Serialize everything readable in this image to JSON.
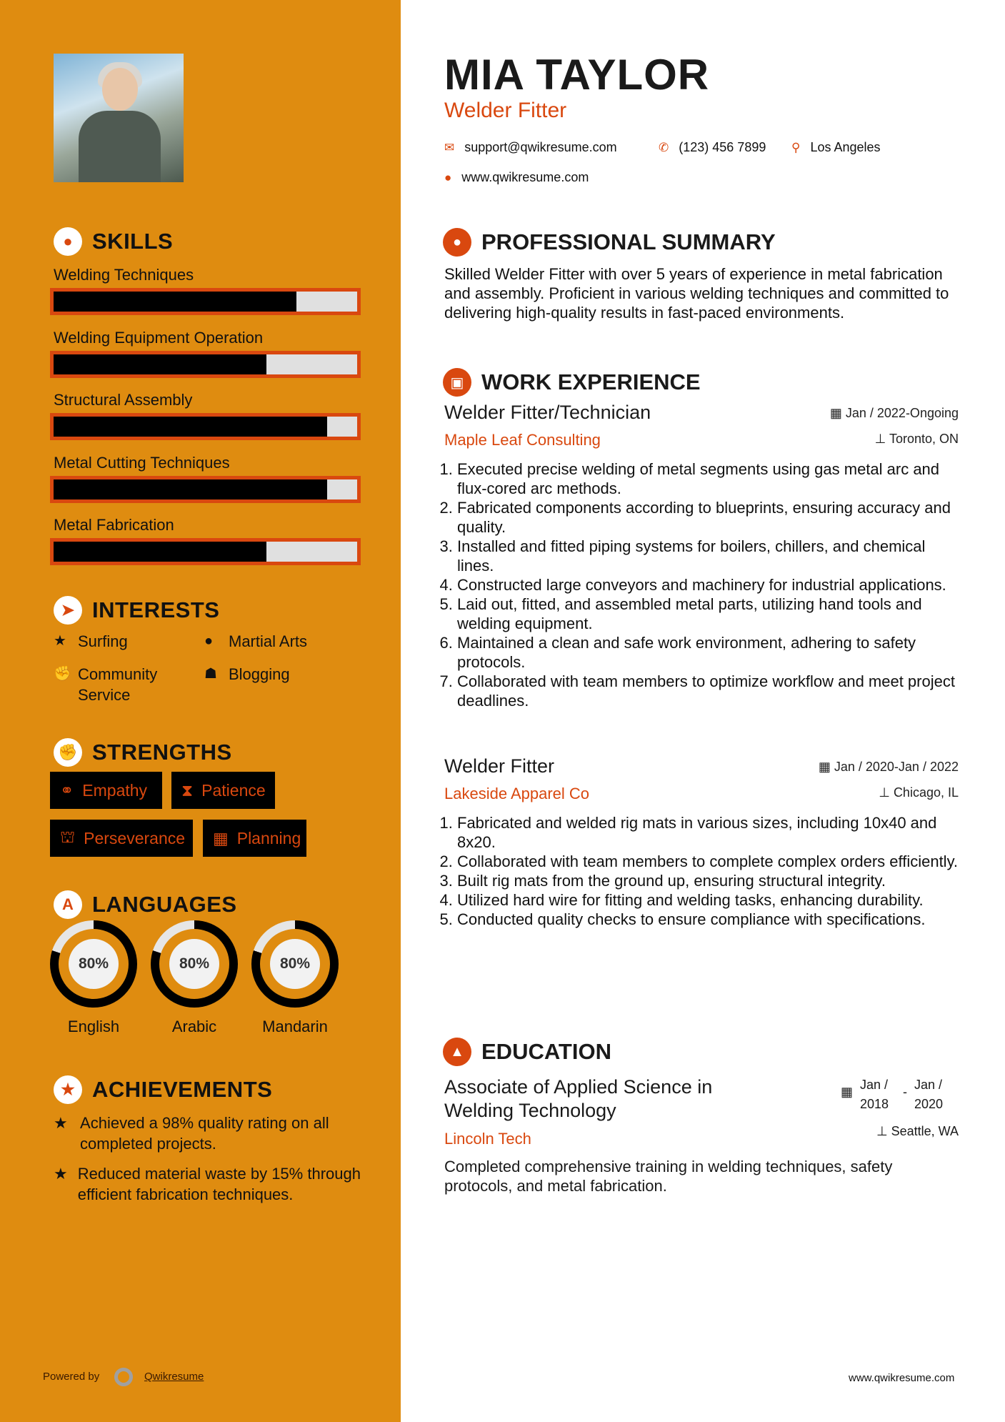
{
  "colors": {
    "sidebar": "#DF8C10",
    "accent": "#D9480F",
    "bar_track": "#e0e0e0",
    "bar_fill": "#000000"
  },
  "profile": {
    "name": "MIA TAYLOR",
    "title": "Welder Fitter",
    "email": "support@qwikresume.com",
    "phone": "(123) 456 7899",
    "location": "Los Angeles",
    "website": "www.qwikresume.com"
  },
  "skills": {
    "heading": "SKILLS",
    "items": [
      {
        "label": "Welding Techniques",
        "level": 80
      },
      {
        "label": "Welding Equipment Operation",
        "level": 70
      },
      {
        "label": "Structural Assembly",
        "level": 90
      },
      {
        "label": "Metal Cutting Techniques",
        "level": 90
      },
      {
        "label": "Metal Fabrication",
        "level": 70
      }
    ]
  },
  "interests": {
    "heading": "INTERESTS",
    "items": [
      {
        "label": "Surfing",
        "icon": "star-icon"
      },
      {
        "label": "Martial Arts",
        "icon": "globe-icon"
      },
      {
        "label": "Community Service",
        "icon": "fist-icon"
      },
      {
        "label": "Blogging",
        "icon": "users-icon"
      }
    ]
  },
  "strengths": {
    "heading": "STRENGTHS",
    "items": [
      {
        "label": "Empathy",
        "icon": "handshake-icon"
      },
      {
        "label": "Patience",
        "icon": "hourglass-icon"
      },
      {
        "label": "Perseverance",
        "icon": "binoculars-icon"
      },
      {
        "label": "Planning",
        "icon": "calendar-icon"
      }
    ]
  },
  "languages": {
    "heading": "LANGUAGES",
    "items": [
      {
        "label": "English",
        "percent": 80,
        "text": "80%"
      },
      {
        "label": "Arabic",
        "percent": 80,
        "text": "80%"
      },
      {
        "label": "Mandarin",
        "percent": 80,
        "text": "80%"
      }
    ]
  },
  "achievements": {
    "heading": "ACHIEVEMENTS",
    "items": [
      "Achieved a 98% quality rating on all completed projects.",
      "Reduced material waste by 15% through efficient fabrication techniques."
    ]
  },
  "footer": {
    "powered_by": "Powered by",
    "brand": "Qwikresume",
    "site": "www.qwikresume.com"
  },
  "summary": {
    "heading": "PROFESSIONAL SUMMARY",
    "text": "Skilled Welder Fitter with over 5 years of experience in metal fabrication and assembly. Proficient in various welding techniques and committed to delivering high-quality results in fast-paced environments."
  },
  "experience": {
    "heading": "WORK EXPERIENCE",
    "jobs": [
      {
        "title": "Welder Fitter/Technician",
        "company": "Maple Leaf Consulting",
        "dates": "Jan / 2022-Ongoing",
        "location": "Toronto, ON",
        "bullets": [
          "Executed precise welding of metal segments using gas metal arc and flux-cored arc methods.",
          "Fabricated components according to blueprints, ensuring accuracy and quality.",
          "Installed and fitted piping systems for boilers, chillers, and chemical lines.",
          "Constructed large conveyors and machinery for industrial applications.",
          "Laid out, fitted, and assembled metal parts, utilizing hand tools and welding equipment.",
          "Maintained a clean and safe work environment, adhering to safety protocols.",
          "Collaborated with team members to optimize workflow and meet project deadlines."
        ]
      },
      {
        "title": "Welder Fitter",
        "company": "Lakeside Apparel Co",
        "dates": "Jan / 2020-Jan / 2022",
        "location": "Chicago, IL",
        "bullets": [
          "Fabricated and welded rig mats in various sizes, including 10x40 and 8x20.",
          "Collaborated with team members to complete complex orders efficiently.",
          "Built rig mats from the ground up, ensuring structural integrity.",
          "Utilized hard wire for fitting and welding tasks, enhancing durability.",
          "Conducted quality checks to ensure compliance with specifications."
        ]
      }
    ]
  },
  "education": {
    "heading": "EDUCATION",
    "degree": "Associate of Applied Science in Welding Technology",
    "school": "Lincoln Tech",
    "start": "Jan / 2018",
    "end": "Jan / 2020",
    "location": "Seattle, WA",
    "text": "Completed comprehensive training in welding techniques, safety protocols, and metal fabrication."
  }
}
